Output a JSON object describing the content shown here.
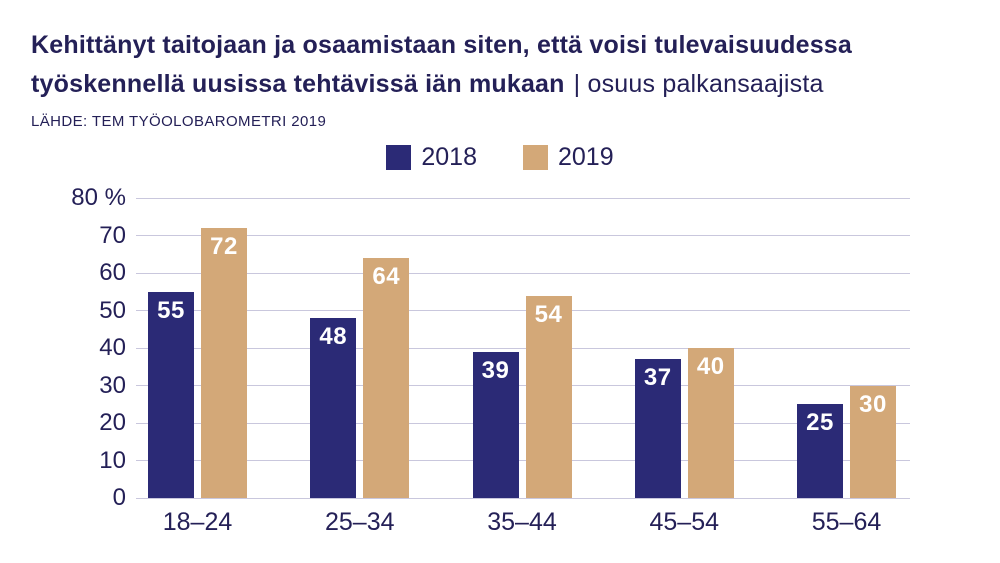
{
  "header": {
    "title_line1": "Kehittänyt taitojaan ja osaamistaan siten, että voisi tulevaisuudessa",
    "title_line2_bold": "työskennellä uusissa tehtävissä iän mukaan",
    "title_line2_regular": "| osuus palkansaajista",
    "source": "LÄHDE: TEM TYÖOLOBAROMETRI 2019"
  },
  "chart_data": {
    "type": "bar",
    "title": "Kehittänyt taitojaan ja osaamistaan siten, että voisi tulevaisuudessa työskennellä uusissa tehtävissä iän mukaan | osuus palkansaajista",
    "source": "LÄHDE: TEM TYÖOLOBAROMETRI 2019",
    "categories": [
      "18–24",
      "25–34",
      "35–44",
      "45–54",
      "55–64"
    ],
    "series": [
      {
        "name": "2018",
        "color": "#2b2a76",
        "values": [
          55,
          48,
          39,
          37,
          25
        ]
      },
      {
        "name": "2019",
        "color": "#d3a878",
        "values": [
          72,
          64,
          54,
          40,
          30
        ]
      }
    ],
    "xlabel": "",
    "ylabel": "%",
    "ylim": [
      0,
      80
    ],
    "ytick_step": 10,
    "ytick_labels": [
      "0",
      "10",
      "20",
      "30",
      "40",
      "50",
      "60",
      "70",
      "80 %"
    ],
    "grid": true,
    "legend_position": "top",
    "value_labels": true,
    "value_label_color": "#ffffff"
  },
  "colors": {
    "text": "#242057",
    "gridline": "#c9c7dd",
    "background": "#ffffff",
    "series_2018": "#2b2a76",
    "series_2019": "#d3a878"
  }
}
